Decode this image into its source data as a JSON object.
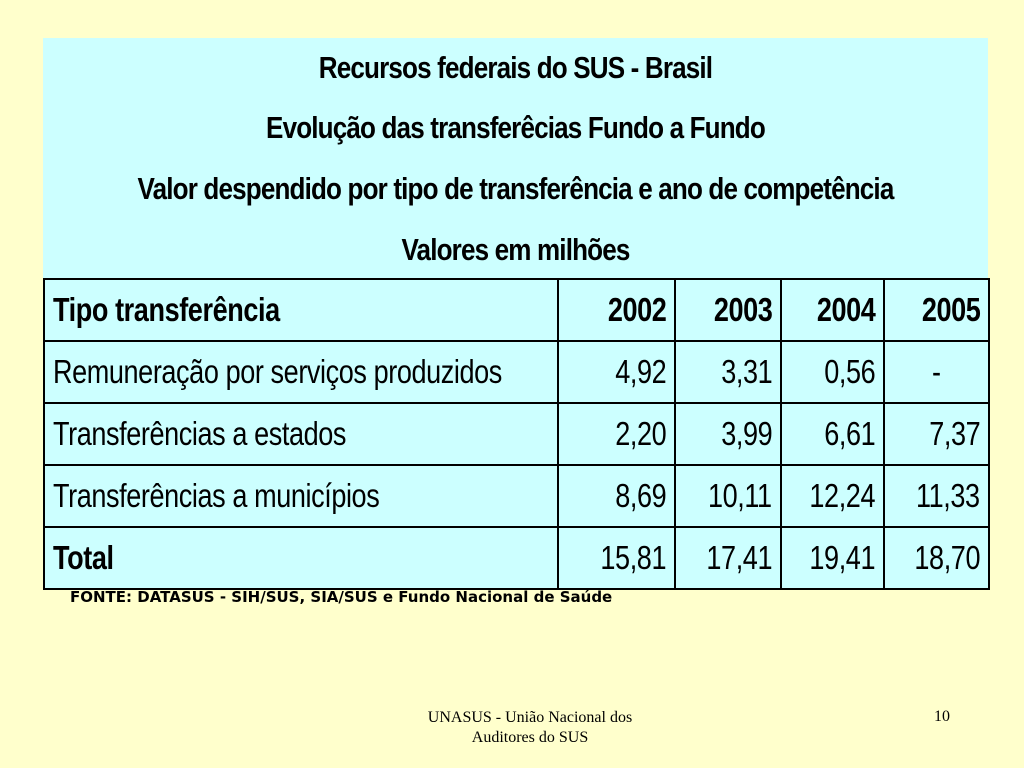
{
  "title": {
    "line1": "Recursos federais do SUS - Brasil",
    "line2": "Evolução das transferêcias Fundo a Fundo",
    "line3": "Valor despendido por tipo de transferência e ano de competência",
    "line4": "Valores em milhões"
  },
  "table": {
    "header": {
      "label": "Tipo transferência",
      "years": [
        "2002",
        "2003",
        "2004",
        "2005"
      ]
    },
    "rows": [
      {
        "label": "Remuneração por serviços produzidos",
        "values": [
          "4,92",
          "3,31",
          "0,56",
          "-"
        ]
      },
      {
        "label": "Transferências a estados",
        "values": [
          "2,20",
          "3,99",
          "6,61",
          "7,37"
        ]
      },
      {
        "label": "Transferências a municípios",
        "values": [
          "8,69",
          "10,11",
          "12,24",
          "11,33"
        ]
      }
    ],
    "total": {
      "label": "Total",
      "values": [
        "15,81",
        "17,41",
        "19,41",
        "18,70"
      ]
    }
  },
  "source": "FONTE: DATASUS - SIH/SUS, SIA/SUS e Fundo Nacional de Saúde",
  "footer": {
    "text_line1": "UNASUS - União Nacional dos",
    "text_line2": "Auditores do SUS",
    "page_number": "10"
  },
  "colors": {
    "background": "#ffffcc",
    "table_fill": "#ccffff",
    "border": "#000000"
  }
}
